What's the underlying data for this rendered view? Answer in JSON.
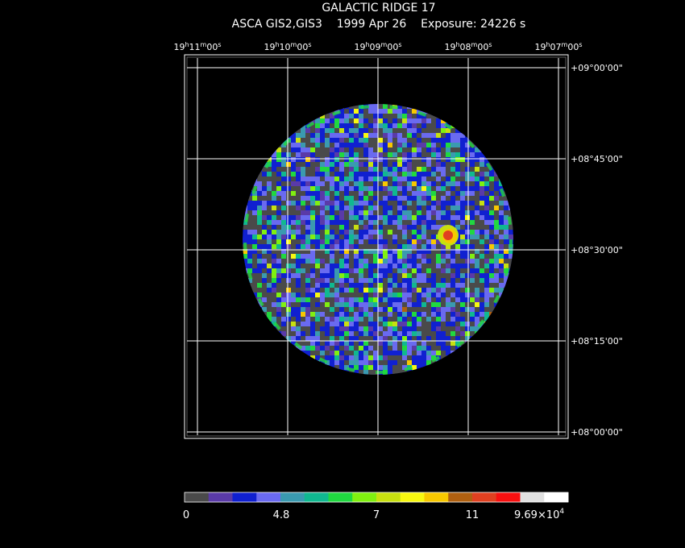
{
  "header": {
    "title": "GALACTIC RIDGE 17",
    "instrument": "ASCA GIS2,GIS3",
    "date": "1999 Apr 26",
    "exposure": "Exposure: 24226 s"
  },
  "ra_ticks": [
    {
      "h": "19",
      "m": "11",
      "s": "00"
    },
    {
      "h": "19",
      "m": "10",
      "s": "00"
    },
    {
      "h": "19",
      "m": "09",
      "s": "00"
    },
    {
      "h": "19",
      "m": "08",
      "s": "00"
    },
    {
      "h": "19",
      "m": "07",
      "s": "00"
    }
  ],
  "dec_ticks": [
    "+09°00'00\"",
    "+08°45'00\"",
    "+08°30'00\"",
    "+08°15'00\"",
    "+08°00'00\""
  ],
  "colorbar": {
    "colors": [
      "#4a4a4a",
      "#5a3aa8",
      "#1020d0",
      "#6a6af0",
      "#3a9ab0",
      "#10b890",
      "#20d840",
      "#80f010",
      "#c8e010",
      "#f8f810",
      "#f8c800",
      "#b06010",
      "#e04020",
      "#f81010",
      "#e0e0e0",
      "#ffffff"
    ],
    "labels": [
      "0",
      "4.8",
      "7",
      "11",
      "9.69×10"
    ],
    "exponent": "4"
  }
}
